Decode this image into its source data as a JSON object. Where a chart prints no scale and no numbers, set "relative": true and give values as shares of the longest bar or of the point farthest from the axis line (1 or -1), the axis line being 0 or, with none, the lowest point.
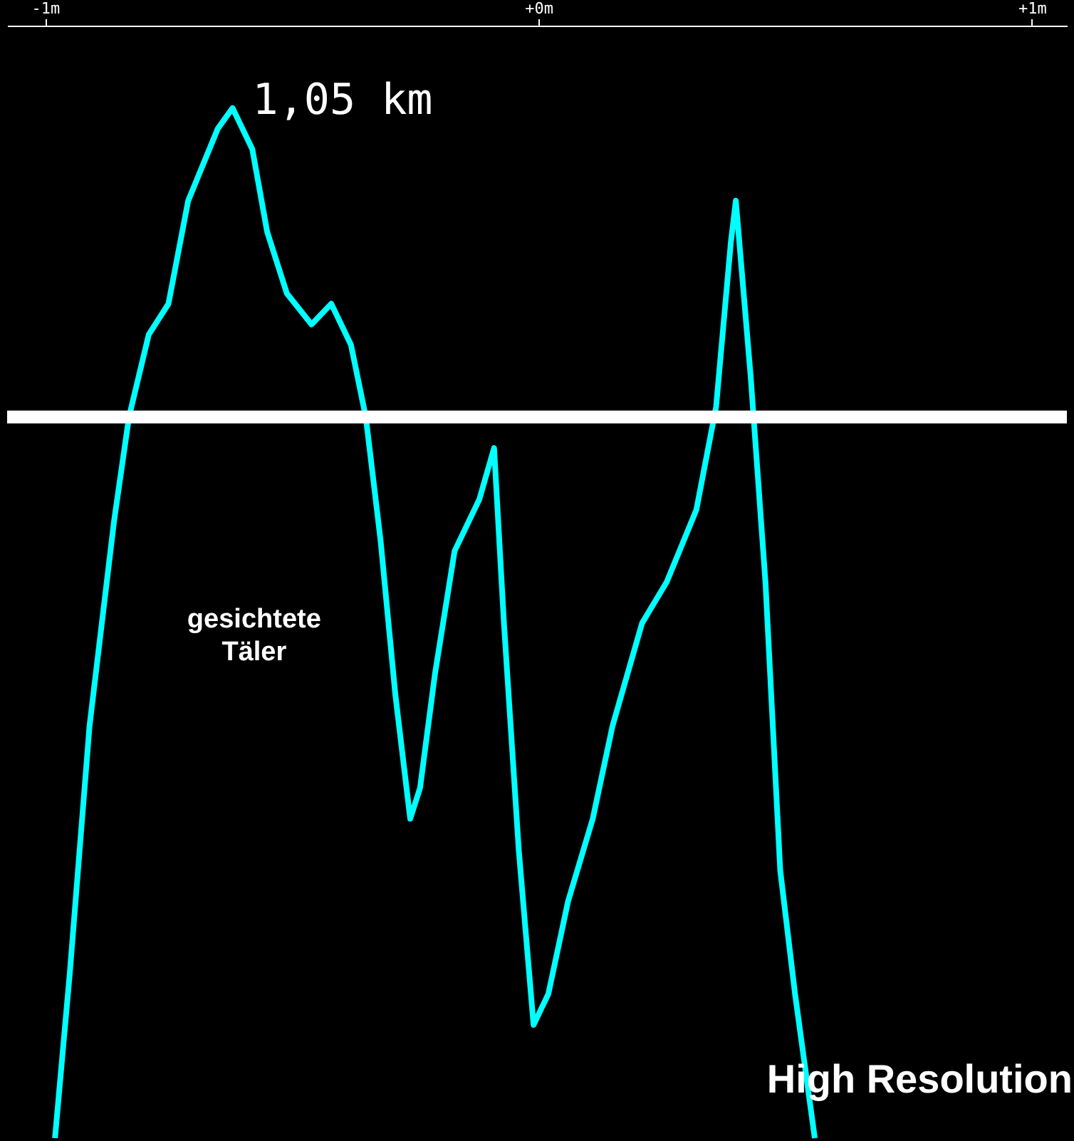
{
  "chart_data": {
    "type": "line",
    "relative": true,
    "x": [
      -0.98,
      -0.95,
      -0.91,
      -0.86,
      -0.83,
      -0.79,
      -0.75,
      -0.71,
      -0.65,
      -0.62,
      -0.58,
      -0.55,
      -0.51,
      -0.46,
      -0.42,
      -0.38,
      -0.35,
      -0.32,
      -0.29,
      -0.26,
      -0.24,
      -0.21,
      -0.17,
      -0.12,
      -0.09,
      -0.07,
      -0.04,
      -0.01,
      0.02,
      0.06,
      0.11,
      0.15,
      0.21,
      0.26,
      0.32,
      0.36,
      0.39,
      0.4,
      0.43,
      0.46,
      0.49,
      0.52,
      0.56
    ],
    "series": [
      {
        "color": "#00ffff",
        "values": [
          0,
          0.16,
          0.4,
          0.6,
          0.7,
          0.78,
          0.81,
          0.91,
          0.98,
          1,
          0.96,
          0.88,
          0.82,
          0.79,
          0.81,
          0.77,
          0.7,
          0.58,
          0.43,
          0.31,
          0.34,
          0.45,
          0.57,
          0.62,
          0.67,
          0.5,
          0.28,
          0.11,
          0.14,
          0.23,
          0.31,
          0.4,
          0.5,
          0.54,
          0.61,
          0.71,
          0.87,
          0.91,
          0.74,
          0.54,
          0.26,
          0.14,
          0
        ]
      }
    ],
    "xlim": [
      -1.077,
      1.071
    ],
    "xticks": [
      {
        "value": -1,
        "label": "-1m"
      },
      {
        "value": 0,
        "label": "+0m"
      },
      {
        "value": 1,
        "label": "+1m"
      }
    ],
    "ref_lines": [
      {
        "axis": "y",
        "value": 0.7,
        "color": "#ffffff"
      }
    ],
    "annotations": [
      {
        "text": "1,05 km",
        "x": -0.62,
        "y": 1
      },
      "gesichtete Täler",
      "High Resolution"
    ],
    "grid": false,
    "marker": "none"
  }
}
